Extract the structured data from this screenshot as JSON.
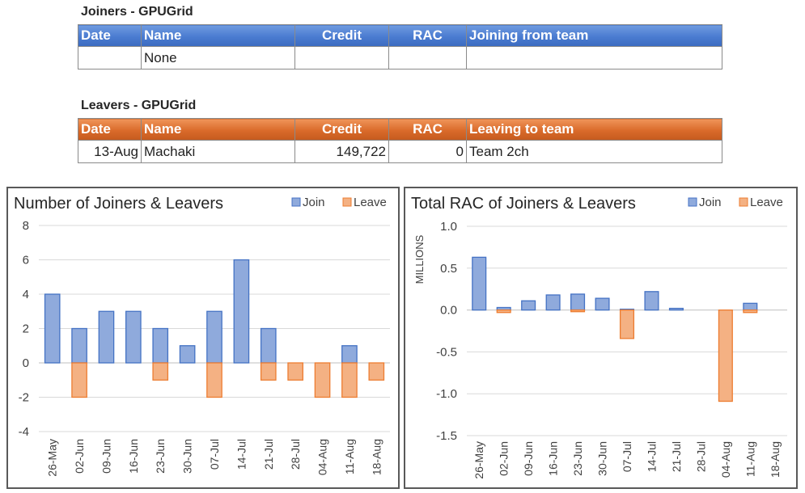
{
  "joiners": {
    "title": "Joiners - GPUGrid",
    "headers": [
      "Date",
      "Name",
      "Credit",
      "RAC",
      "Joining from team"
    ],
    "rows": [
      [
        "",
        "None",
        "",
        "",
        ""
      ]
    ]
  },
  "leavers": {
    "title": "Leavers - GPUGrid",
    "headers": [
      "Date",
      "Name",
      "Credit",
      "RAC",
      "Leaving to team"
    ],
    "rows": [
      [
        "13-Aug",
        "Machaki",
        "149,722",
        "0",
        "Team 2ch"
      ]
    ]
  },
  "colors": {
    "join": "#8faadc",
    "join_edge": "#4472c4",
    "leave": "#f4b183",
    "leave_edge": "#ed7d31"
  },
  "chart_data": [
    {
      "type": "bar",
      "title": "Number of Joiners & Leavers",
      "categories": [
        "26-May",
        "02-Jun",
        "09-Jun",
        "16-Jun",
        "23-Jun",
        "30-Jun",
        "07-Jul",
        "14-Jul",
        "21-Jul",
        "28-Jul",
        "04-Aug",
        "11-Aug",
        "18-Aug"
      ],
      "series": [
        {
          "name": "Join",
          "values": [
            4,
            2,
            3,
            3,
            2,
            1,
            3,
            6,
            2,
            0,
            0,
            1,
            0
          ]
        },
        {
          "name": "Leave",
          "values": [
            0,
            -2,
            0,
            0,
            -1,
            0,
            -2,
            0,
            -1,
            -1,
            -2,
            -2,
            -1
          ]
        }
      ],
      "ylim": [
        -4,
        8
      ],
      "yticks": [
        "8",
        "6",
        "4",
        "2",
        "0",
        "-2",
        "-4"
      ],
      "ylabel": "",
      "legend": "top-right",
      "grid": true
    },
    {
      "type": "bar",
      "title": "Total RAC of Joiners & Leavers",
      "categories": [
        "26-May",
        "02-Jun",
        "09-Jun",
        "16-Jun",
        "23-Jun",
        "30-Jun",
        "07-Jul",
        "14-Jul",
        "21-Jul",
        "28-Jul",
        "04-Aug",
        "11-Aug",
        "18-Aug"
      ],
      "series": [
        {
          "name": "Join",
          "values": [
            0.63,
            0.03,
            0.11,
            0.18,
            0.19,
            0.14,
            0.01,
            0.22,
            0.02,
            0,
            0,
            0.08,
            0
          ]
        },
        {
          "name": "Leave",
          "values": [
            0,
            -0.03,
            0,
            0,
            -0.02,
            0,
            -0.34,
            0,
            0,
            0,
            -1.09,
            -0.03,
            0
          ]
        }
      ],
      "ylim": [
        -1.5,
        1.0
      ],
      "yticks": [
        "1.0",
        "0.5",
        "0.0",
        "-0.5",
        "-1.0",
        "-1.5"
      ],
      "ylabel": "MILLIONS",
      "legend": "top-right",
      "grid": true
    }
  ]
}
